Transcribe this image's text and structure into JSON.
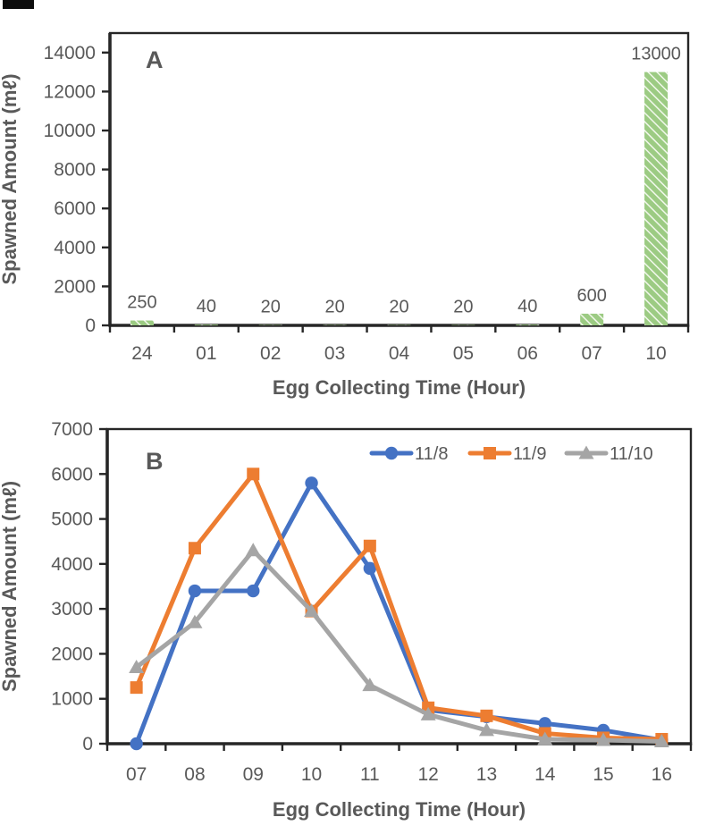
{
  "page": {
    "background": "#ffffff",
    "artifact": "black-scan-mark-top-left"
  },
  "colors": {
    "axis": "#262626",
    "text": "#595959",
    "bar_green": "#9ccb83",
    "bar_hatch_white": "#f2f8ec",
    "series_blue": "#4472C4",
    "series_orange": "#ED7D31",
    "series_gray": "#A5A5A5"
  },
  "chart_data": [
    {
      "id": "A",
      "type": "bar",
      "panel_label": "A",
      "xlabel": "Egg Collecting Time (Hour)",
      "ylabel": "Spawned Amount (mℓ)",
      "categories": [
        "24",
        "01",
        "02",
        "03",
        "04",
        "05",
        "06",
        "07",
        "10"
      ],
      "values": [
        250,
        40,
        20,
        20,
        20,
        20,
        40,
        600,
        13000
      ],
      "data_labels": [
        "250",
        "40",
        "20",
        "20",
        "20",
        "20",
        "40",
        "600",
        "13000"
      ],
      "ylim": [
        0,
        15000
      ],
      "yticks": [
        0,
        2000,
        4000,
        6000,
        8000,
        10000,
        12000,
        14000
      ],
      "grid": false,
      "bar_style": "green-diagonal-hatch",
      "legend": "none"
    },
    {
      "id": "B",
      "type": "line",
      "panel_label": "B",
      "xlabel": "Egg Collecting Time (Hour)",
      "ylabel": "Spawned Amount (mℓ)",
      "categories": [
        "07",
        "08",
        "09",
        "10",
        "11",
        "12",
        "13",
        "14",
        "15",
        "16"
      ],
      "series": [
        {
          "name": "11/8",
          "marker": "circle",
          "color": "#4472C4",
          "values": [
            0,
            3400,
            3400,
            5800,
            3900,
            750,
            600,
            450,
            300,
            80
          ]
        },
        {
          "name": "11/9",
          "marker": "square",
          "color": "#ED7D31",
          "values": [
            1250,
            4350,
            6000,
            2950,
            4400,
            800,
            620,
            230,
            130,
            100
          ]
        },
        {
          "name": "11/10",
          "marker": "triangle",
          "color": "#A5A5A5",
          "values": [
            1700,
            2700,
            4300,
            2950,
            1300,
            650,
            300,
            100,
            80,
            50
          ]
        }
      ],
      "ylim": [
        0,
        7000
      ],
      "yticks": [
        0,
        1000,
        2000,
        3000,
        4000,
        5000,
        6000,
        7000
      ],
      "grid": false,
      "legend_position": "top-right-inside"
    }
  ]
}
